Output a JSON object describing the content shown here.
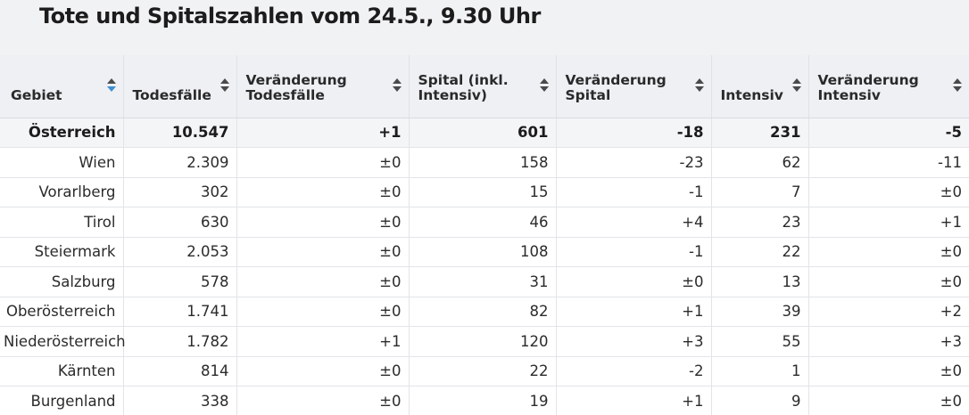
{
  "title": "Tote und Spitalszahlen vom 24.5., 9.30 Uhr",
  "columns": [
    {
      "label": "Gebiet",
      "sort": "descending"
    },
    {
      "label": "Todesfälle",
      "sort": "none"
    },
    {
      "label": "Veränderung Todesfälle",
      "sort": "none"
    },
    {
      "label": "Spital (inkl. Intensiv)",
      "sort": "none"
    },
    {
      "label": "Veränderung Spital",
      "sort": "none"
    },
    {
      "label": "Intensiv",
      "sort": "none"
    },
    {
      "label": "Veränderung Intensiv",
      "sort": "none"
    }
  ],
  "rows": [
    {
      "gebiet": "Österreich",
      "todesfaelle": "10.547",
      "veraenderung_todesfaelle": "+1",
      "spital": "601",
      "veraenderung_spital": "-18",
      "intensiv": "231",
      "veraenderung_intensiv": "-5",
      "total": true
    },
    {
      "gebiet": "Wien",
      "todesfaelle": "2.309",
      "veraenderung_todesfaelle": "±0",
      "spital": "158",
      "veraenderung_spital": "-23",
      "intensiv": "62",
      "veraenderung_intensiv": "-11"
    },
    {
      "gebiet": "Vorarlberg",
      "todesfaelle": "302",
      "veraenderung_todesfaelle": "±0",
      "spital": "15",
      "veraenderung_spital": "-1",
      "intensiv": "7",
      "veraenderung_intensiv": "±0"
    },
    {
      "gebiet": "Tirol",
      "todesfaelle": "630",
      "veraenderung_todesfaelle": "±0",
      "spital": "46",
      "veraenderung_spital": "+4",
      "intensiv": "23",
      "veraenderung_intensiv": "+1"
    },
    {
      "gebiet": "Steiermark",
      "todesfaelle": "2.053",
      "veraenderung_todesfaelle": "±0",
      "spital": "108",
      "veraenderung_spital": "-1",
      "intensiv": "22",
      "veraenderung_intensiv": "±0"
    },
    {
      "gebiet": "Salzburg",
      "todesfaelle": "578",
      "veraenderung_todesfaelle": "±0",
      "spital": "31",
      "veraenderung_spital": "±0",
      "intensiv": "13",
      "veraenderung_intensiv": "±0"
    },
    {
      "gebiet": "Oberösterreich",
      "todesfaelle": "1.741",
      "veraenderung_todesfaelle": "±0",
      "spital": "82",
      "veraenderung_spital": "+1",
      "intensiv": "39",
      "veraenderung_intensiv": "+2"
    },
    {
      "gebiet": "Niederösterreich",
      "todesfaelle": "1.782",
      "veraenderung_todesfaelle": "+1",
      "spital": "120",
      "veraenderung_spital": "+3",
      "intensiv": "55",
      "veraenderung_intensiv": "+3"
    },
    {
      "gebiet": "Kärnten",
      "todesfaelle": "814",
      "veraenderung_todesfaelle": "±0",
      "spital": "22",
      "veraenderung_spital": "-2",
      "intensiv": "1",
      "veraenderung_intensiv": "±0"
    },
    {
      "gebiet": "Burgenland",
      "todesfaelle": "338",
      "veraenderung_todesfaelle": "±0",
      "spital": "19",
      "veraenderung_spital": "+1",
      "intensiv": "9",
      "veraenderung_intensiv": "±0"
    }
  ],
  "colors": {
    "accent": "#3d8fd1",
    "header_bg": "#eef0f4",
    "page_bg": "#f1f2f4"
  }
}
